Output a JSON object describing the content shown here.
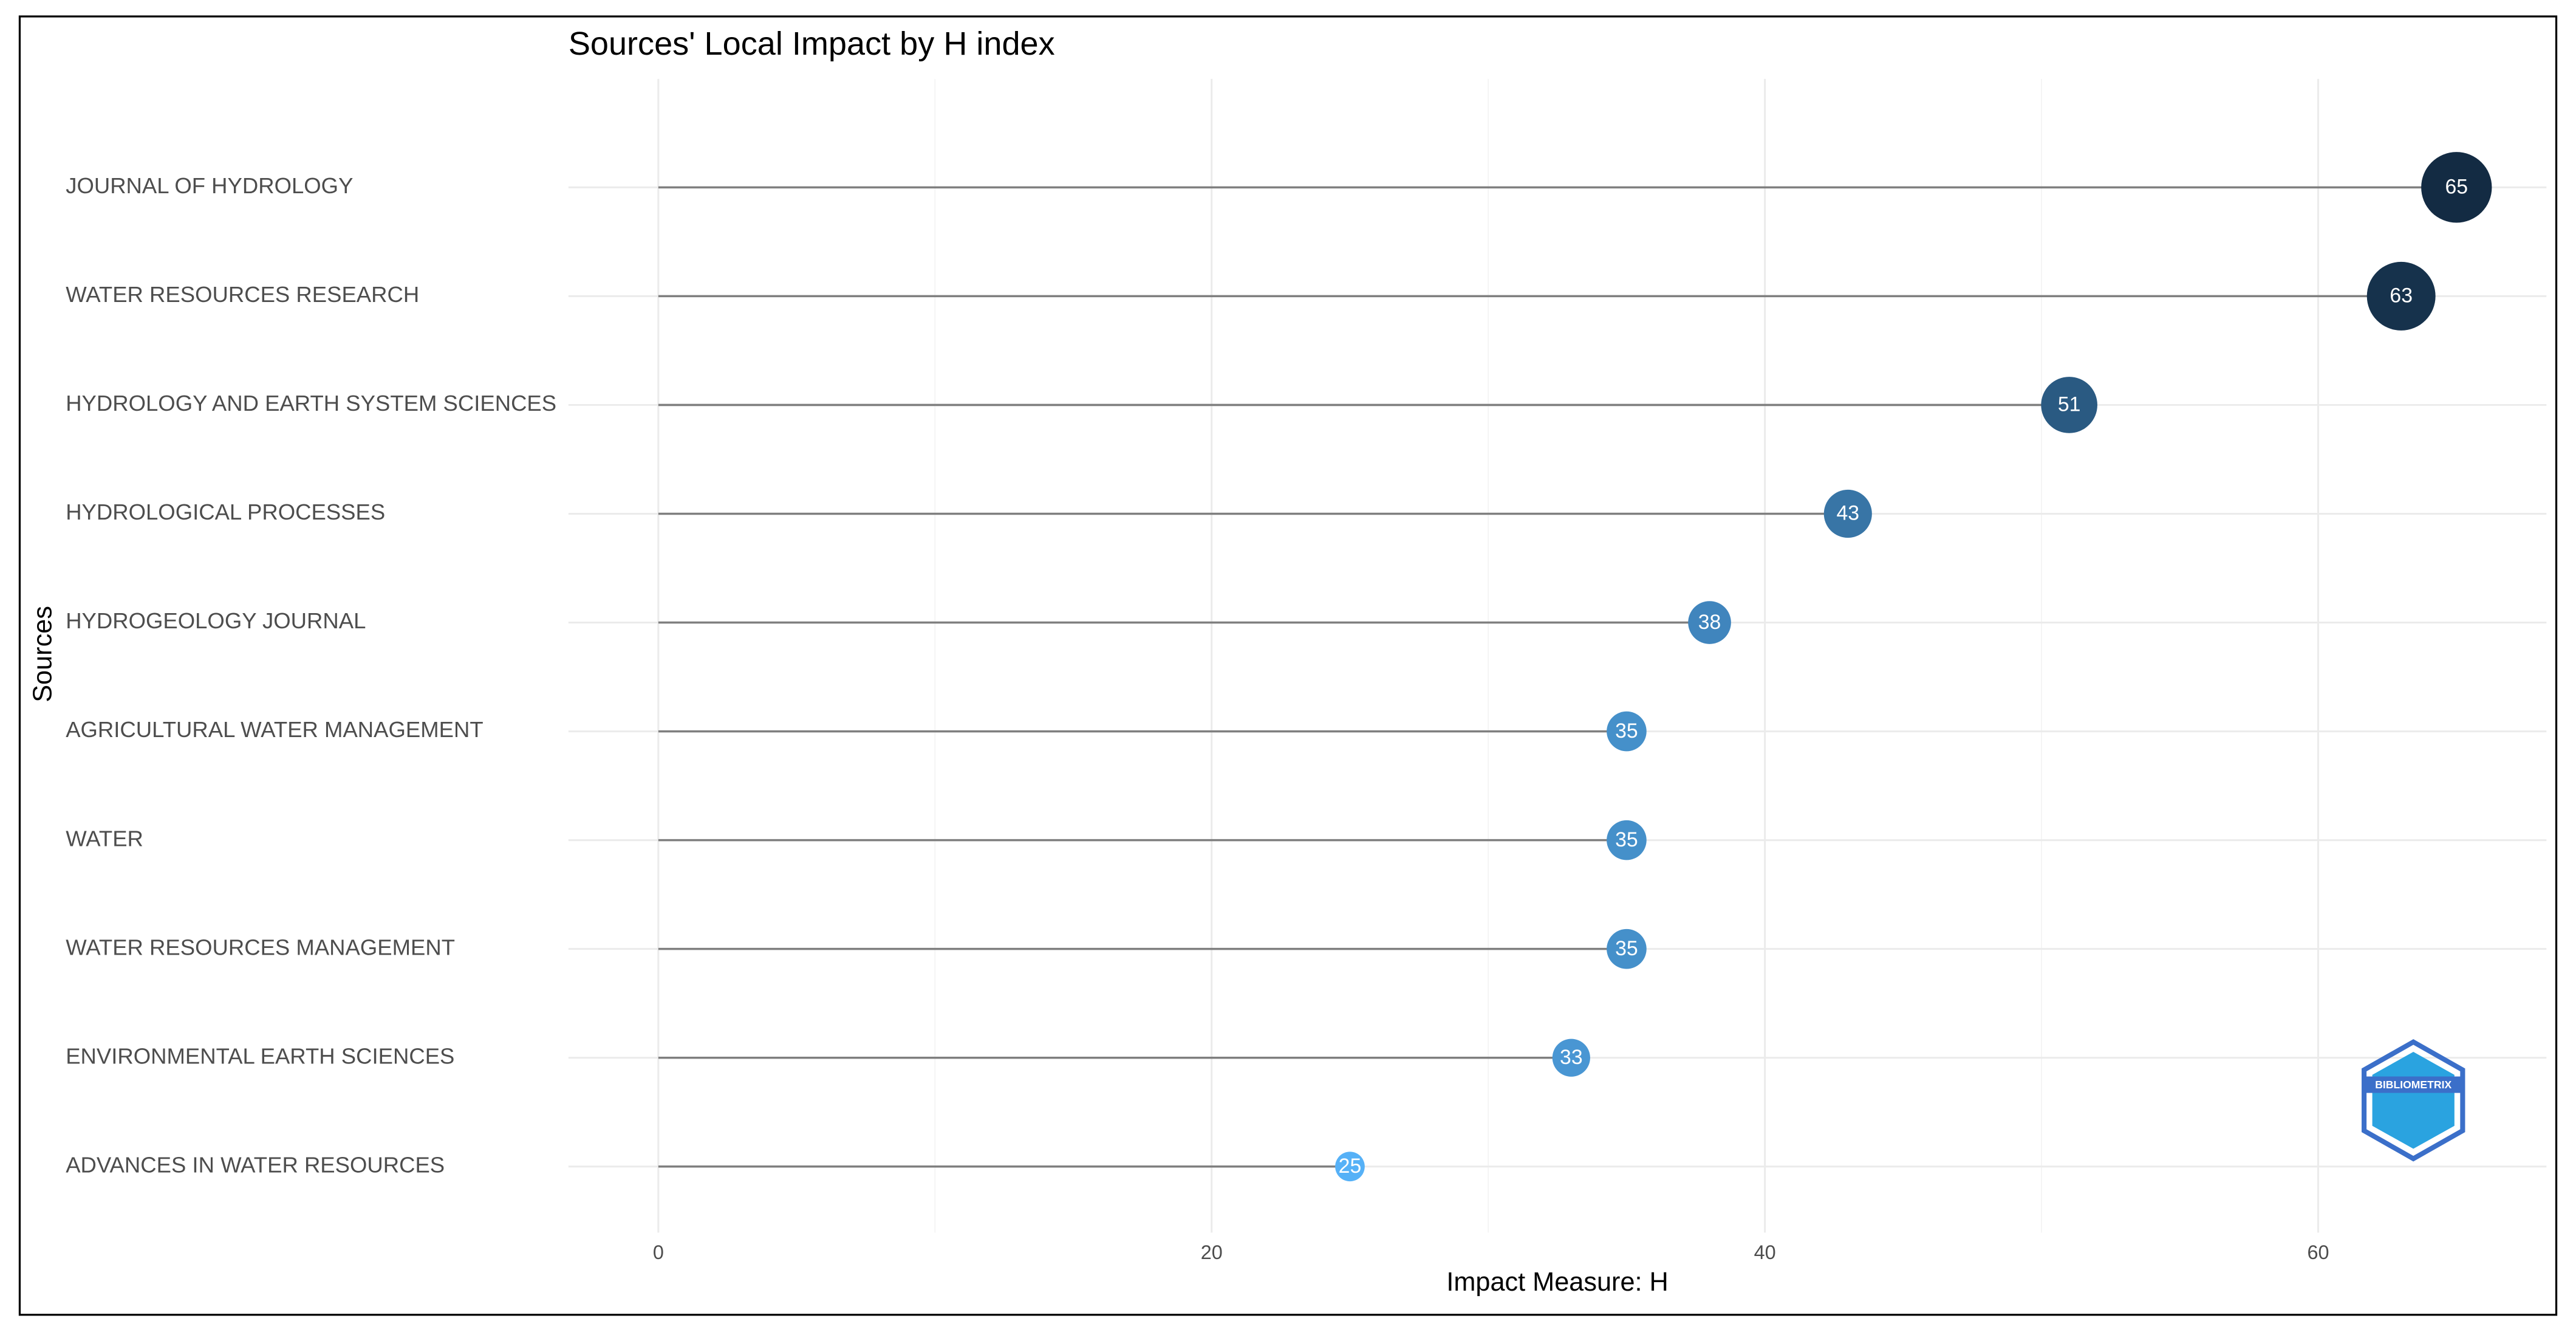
{
  "chart_data": {
    "type": "lollipop",
    "title": "Sources' Local Impact by H index",
    "x_label": "Impact Measure: H",
    "y_label": "Sources",
    "categories": [
      "JOURNAL OF HYDROLOGY",
      "WATER RESOURCES RESEARCH",
      "HYDROLOGY AND EARTH SYSTEM SCIENCES",
      "HYDROLOGICAL PROCESSES",
      "HYDROGEOLOGY JOURNAL",
      "AGRICULTURAL WATER MANAGEMENT",
      "WATER",
      "WATER RESOURCES MANAGEMENT",
      "ENVIRONMENTAL EARTH SCIENCES",
      "ADVANCES IN WATER RESOURCES"
    ],
    "values": [
      65,
      63,
      51,
      43,
      38,
      35,
      35,
      35,
      33,
      25
    ],
    "xlim": [
      -3.25,
      68.25
    ],
    "xticks": [
      0,
      20,
      40,
      60
    ],
    "grid": true,
    "color_low": "#56B1F7",
    "color_high": "#132B43",
    "stem_color": "#7f7f7f",
    "watermark": "BIBLIOMETRIX"
  }
}
